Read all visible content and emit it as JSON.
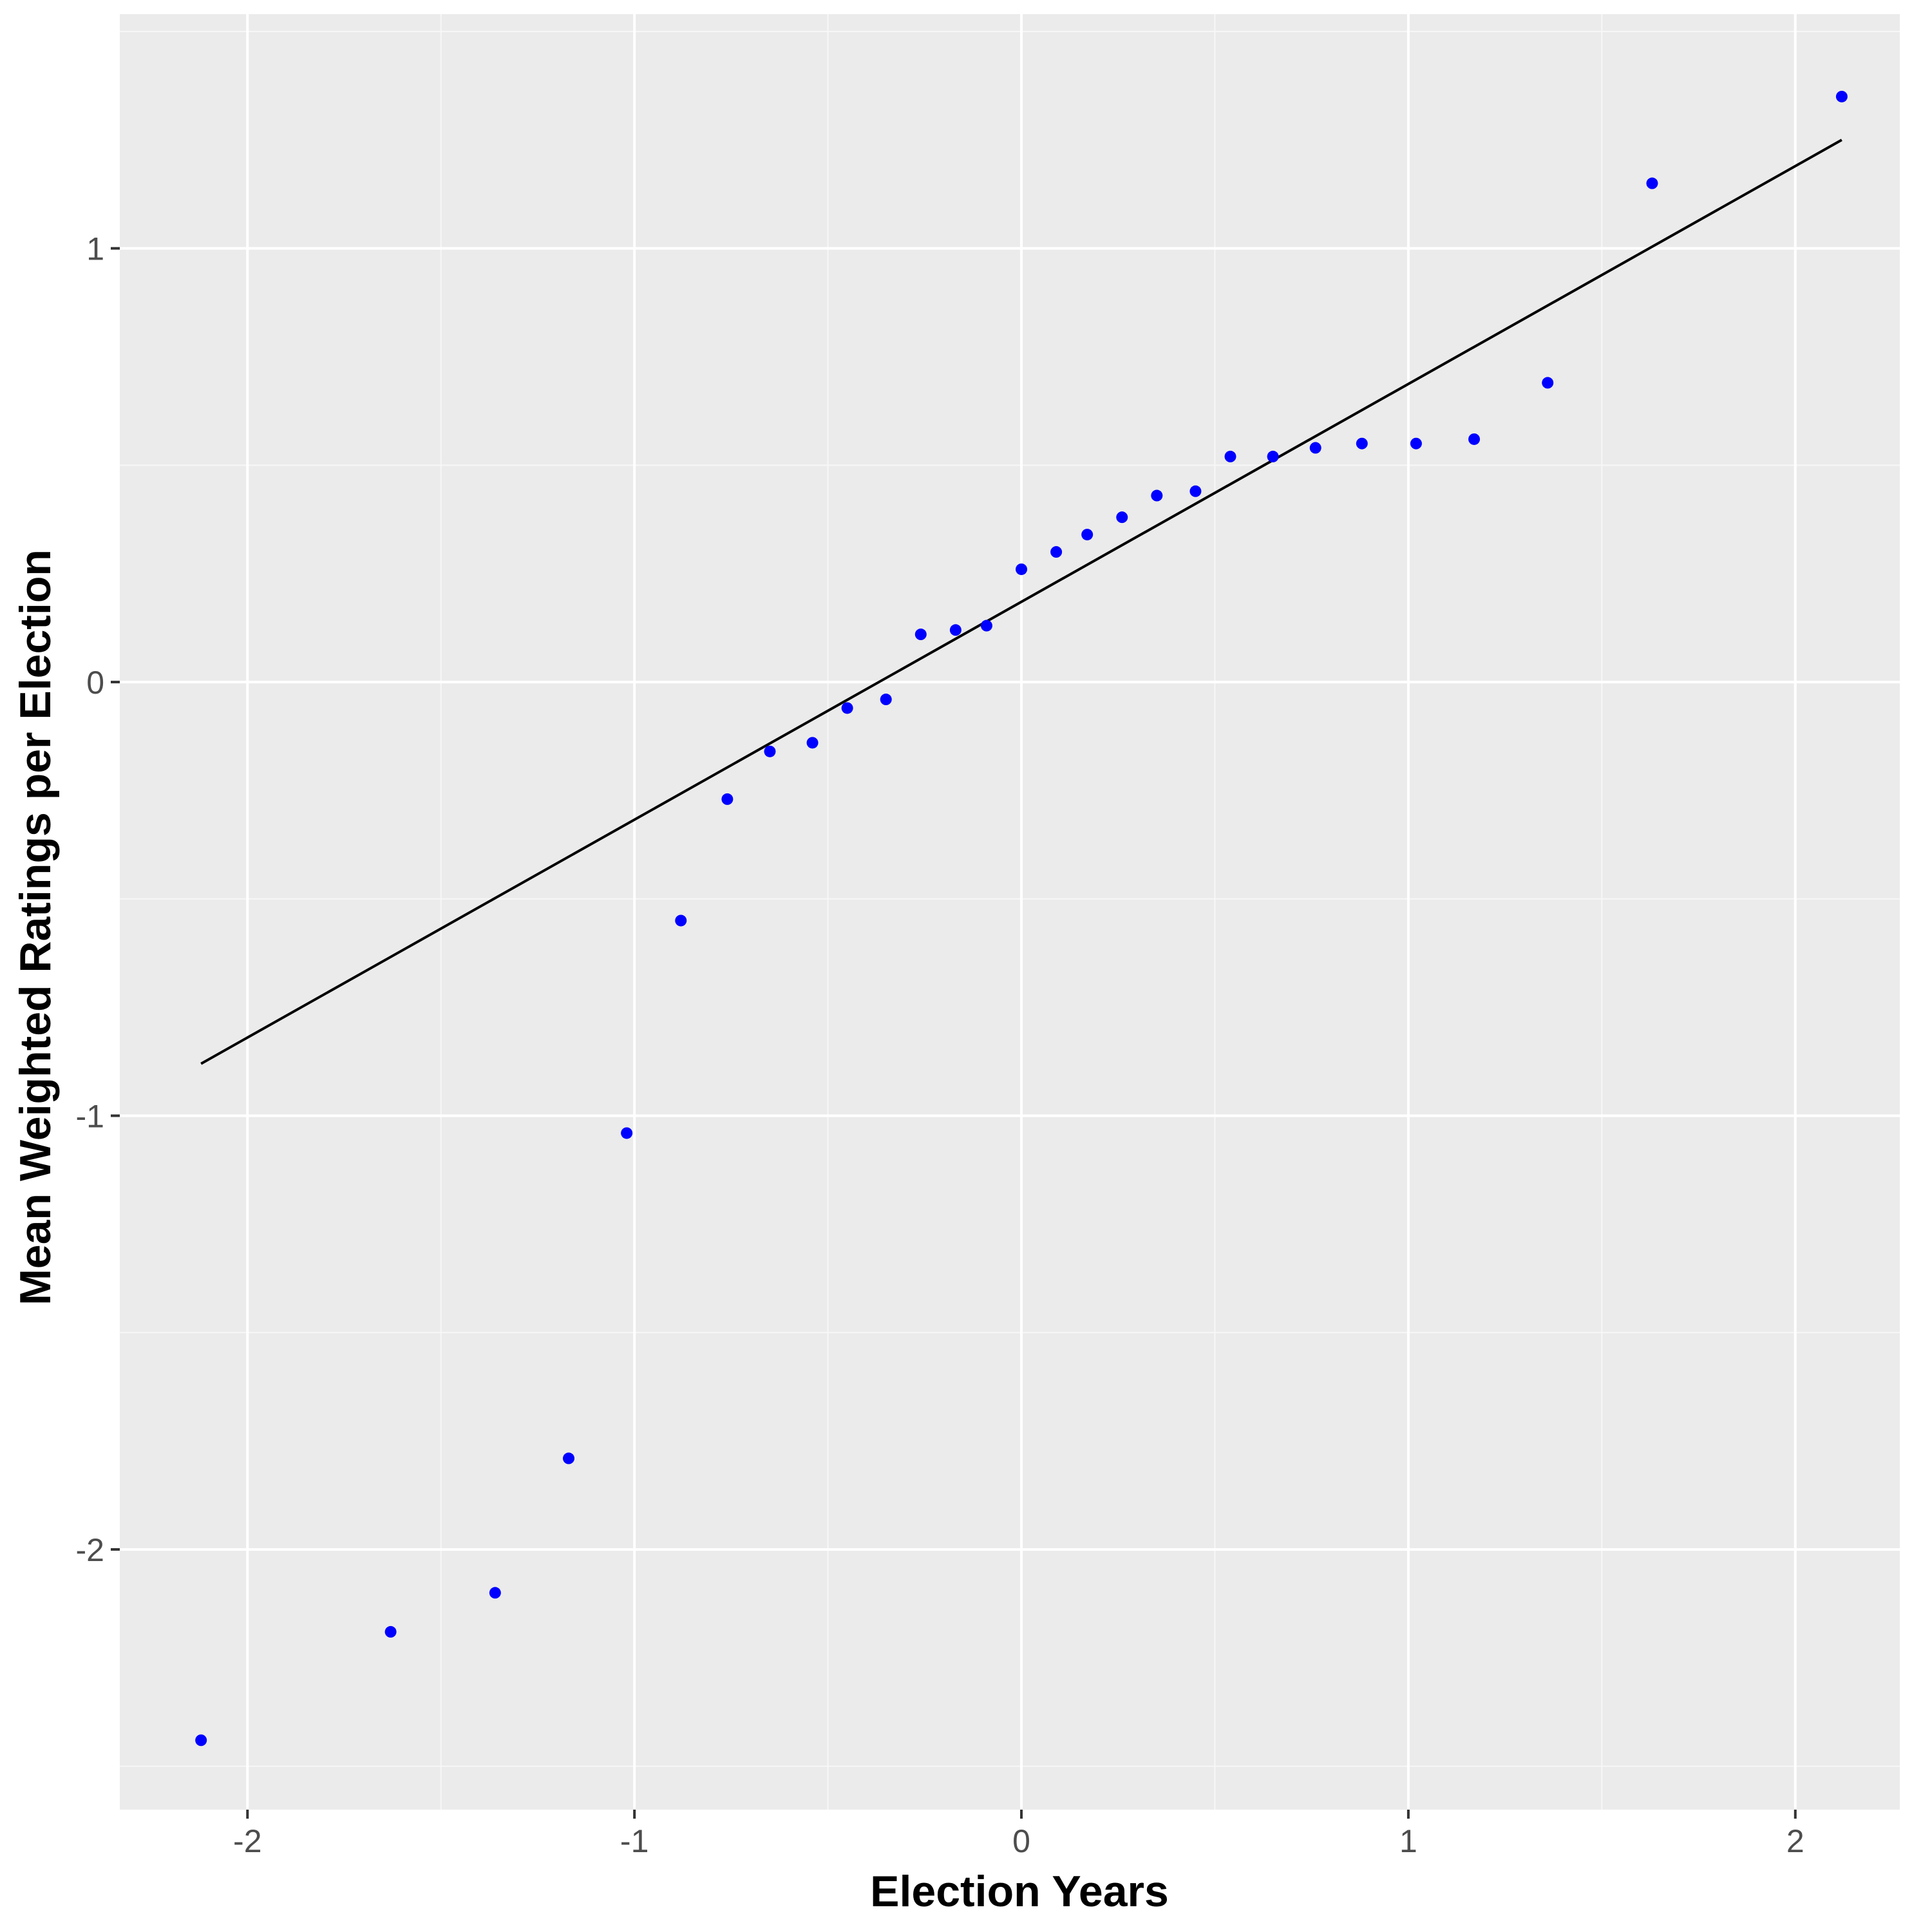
{
  "chart_data": {
    "type": "scatter",
    "title": "",
    "xlabel": "Election Years",
    "ylabel": "Mean Weighted Ratings per Election",
    "xlim": [
      -2.33,
      2.27
    ],
    "ylim": [
      -2.6,
      1.54
    ],
    "x_ticks": [
      -2,
      -1,
      0,
      1,
      2
    ],
    "x_tick_labels": [
      "-2",
      "-1",
      "0",
      "1",
      "2"
    ],
    "y_ticks": [
      -2,
      -1,
      0,
      1
    ],
    "y_tick_labels": [
      "-2",
      "-1",
      "0",
      "1"
    ],
    "grid": true,
    "legend": "none",
    "colors": {
      "panel_background": "#ebebeb",
      "grid_major": "#ffffff",
      "grid_minor": "#f7f7f7",
      "points": "#0000ff",
      "reference_line": "#000000"
    },
    "points": [
      {
        "x": -2.12,
        "y": -2.44
      },
      {
        "x": -1.63,
        "y": -2.19
      },
      {
        "x": -1.36,
        "y": -2.1
      },
      {
        "x": -1.17,
        "y": -1.79
      },
      {
        "x": -1.02,
        "y": -1.04
      },
      {
        "x": -0.88,
        "y": -0.55
      },
      {
        "x": -0.76,
        "y": -0.27
      },
      {
        "x": -0.65,
        "y": -0.16
      },
      {
        "x": -0.54,
        "y": -0.14
      },
      {
        "x": -0.45,
        "y": -0.06
      },
      {
        "x": -0.35,
        "y": -0.04
      },
      {
        "x": -0.26,
        "y": 0.11
      },
      {
        "x": -0.17,
        "y": 0.12
      },
      {
        "x": -0.09,
        "y": 0.13
      },
      {
        "x": 0.0,
        "y": 0.26
      },
      {
        "x": 0.09,
        "y": 0.3
      },
      {
        "x": 0.17,
        "y": 0.34
      },
      {
        "x": 0.26,
        "y": 0.38
      },
      {
        "x": 0.35,
        "y": 0.43
      },
      {
        "x": 0.45,
        "y": 0.44
      },
      {
        "x": 0.54,
        "y": 0.52
      },
      {
        "x": 0.65,
        "y": 0.52
      },
      {
        "x": 0.76,
        "y": 0.54
      },
      {
        "x": 0.88,
        "y": 0.55
      },
      {
        "x": 1.02,
        "y": 0.55
      },
      {
        "x": 1.17,
        "y": 0.56
      },
      {
        "x": 1.36,
        "y": 0.69
      },
      {
        "x": 1.63,
        "y": 1.15
      },
      {
        "x": 2.12,
        "y": 1.35
      }
    ],
    "reference_line": {
      "x": [
        -2.12,
        2.12
      ],
      "y": [
        -0.88,
        1.25
      ]
    }
  }
}
